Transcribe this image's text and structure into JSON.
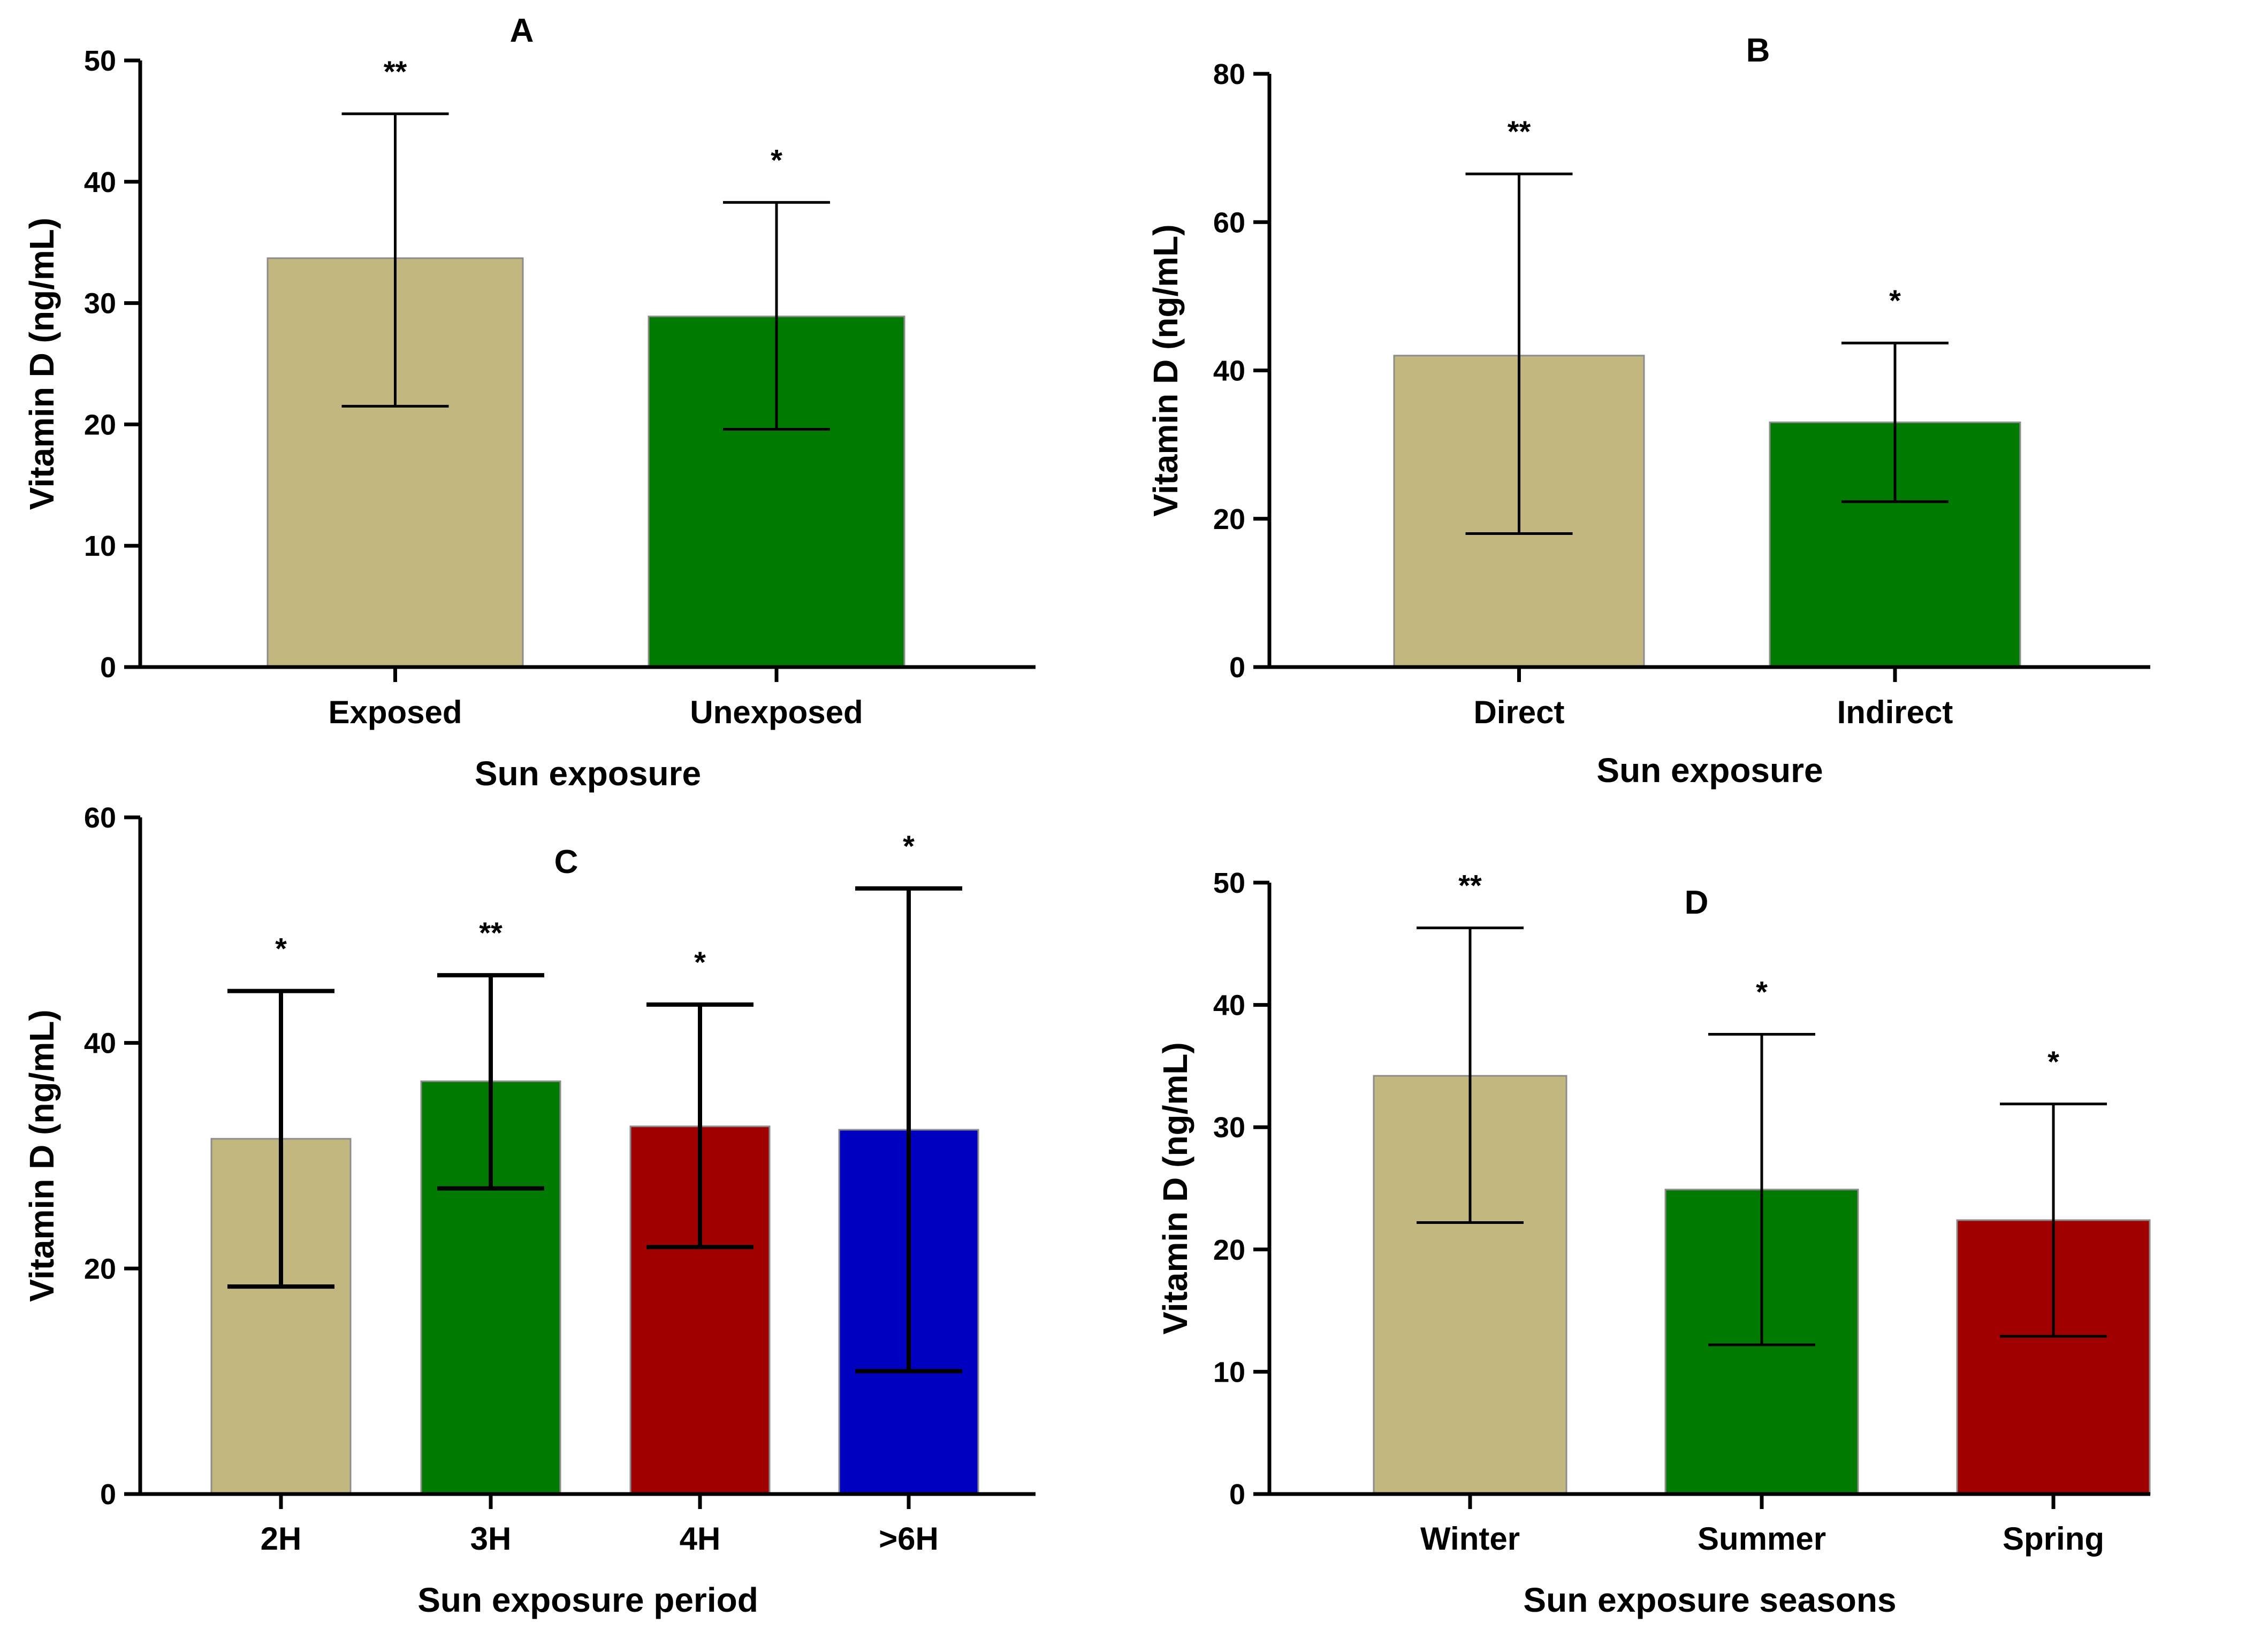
{
  "colors": {
    "tan": "#c2b77e",
    "green": "#007a00",
    "red": "#a00000",
    "blue": "#0000c0",
    "axis": "#000000"
  },
  "chart_data": [
    {
      "type": "bar",
      "panel": "A",
      "ylabel": "Vitamin D (ng/mL)",
      "xlabel": "Sun exposure",
      "ylim": [
        0,
        50
      ],
      "yticks": [
        "0",
        "10",
        "20",
        "30",
        "40",
        "50"
      ],
      "categories": [
        "Exposed",
        "Unexposed"
      ],
      "values": [
        33.7,
        28.9
      ],
      "error_upper": [
        45.6,
        38.3
      ],
      "error_lower": [
        21.5,
        19.6
      ],
      "significance": [
        "**",
        "*"
      ],
      "bar_colors": [
        "tan",
        "green"
      ]
    },
    {
      "type": "bar",
      "panel": "B",
      "ylabel": "Vitamin D (ng/mL)",
      "xlabel": "Sun exposure",
      "ylim": [
        0,
        80
      ],
      "yticks": [
        "0",
        "20",
        "40",
        "60",
        "80"
      ],
      "categories": [
        "Direct",
        "Indirect"
      ],
      "values": [
        42.0,
        33.0
      ],
      "error_upper": [
        66.5,
        43.7
      ],
      "error_lower": [
        18.0,
        22.3
      ],
      "significance": [
        "**",
        "*"
      ],
      "bar_colors": [
        "tan",
        "green"
      ]
    },
    {
      "type": "bar",
      "panel": "C",
      "ylabel": "Vitamin D  (ng/mL)",
      "xlabel": "Sun exposure period",
      "ylim": [
        0,
        60
      ],
      "yticks": [
        "0",
        "20",
        "40",
        "60"
      ],
      "categories": [
        "2H",
        "3H",
        "4H",
        ">6H"
      ],
      "values": [
        31.5,
        36.6,
        32.6,
        32.3
      ],
      "error_upper": [
        44.6,
        46.0,
        43.4,
        53.7
      ],
      "error_lower": [
        18.4,
        27.1,
        21.9,
        10.9
      ],
      "significance": [
        "*",
        "**",
        "*",
        "*"
      ],
      "bar_colors": [
        "tan",
        "green",
        "red",
        "blue"
      ]
    },
    {
      "type": "bar",
      "panel": "D",
      "ylabel": "Vitamin D  (ng/mL)",
      "xlabel": "Sun exposure seasons",
      "ylim": [
        0,
        50
      ],
      "yticks": [
        "0",
        "10",
        "20",
        "30",
        "40",
        "50"
      ],
      "categories": [
        "Winter",
        "Summer",
        "Spring"
      ],
      "values": [
        34.2,
        24.9,
        22.4
      ],
      "error_upper": [
        46.3,
        37.6,
        31.9
      ],
      "error_lower": [
        22.2,
        12.2,
        12.9
      ],
      "significance": [
        "**",
        "*",
        "*"
      ],
      "bar_colors": [
        "tan",
        "green",
        "red"
      ]
    }
  ]
}
